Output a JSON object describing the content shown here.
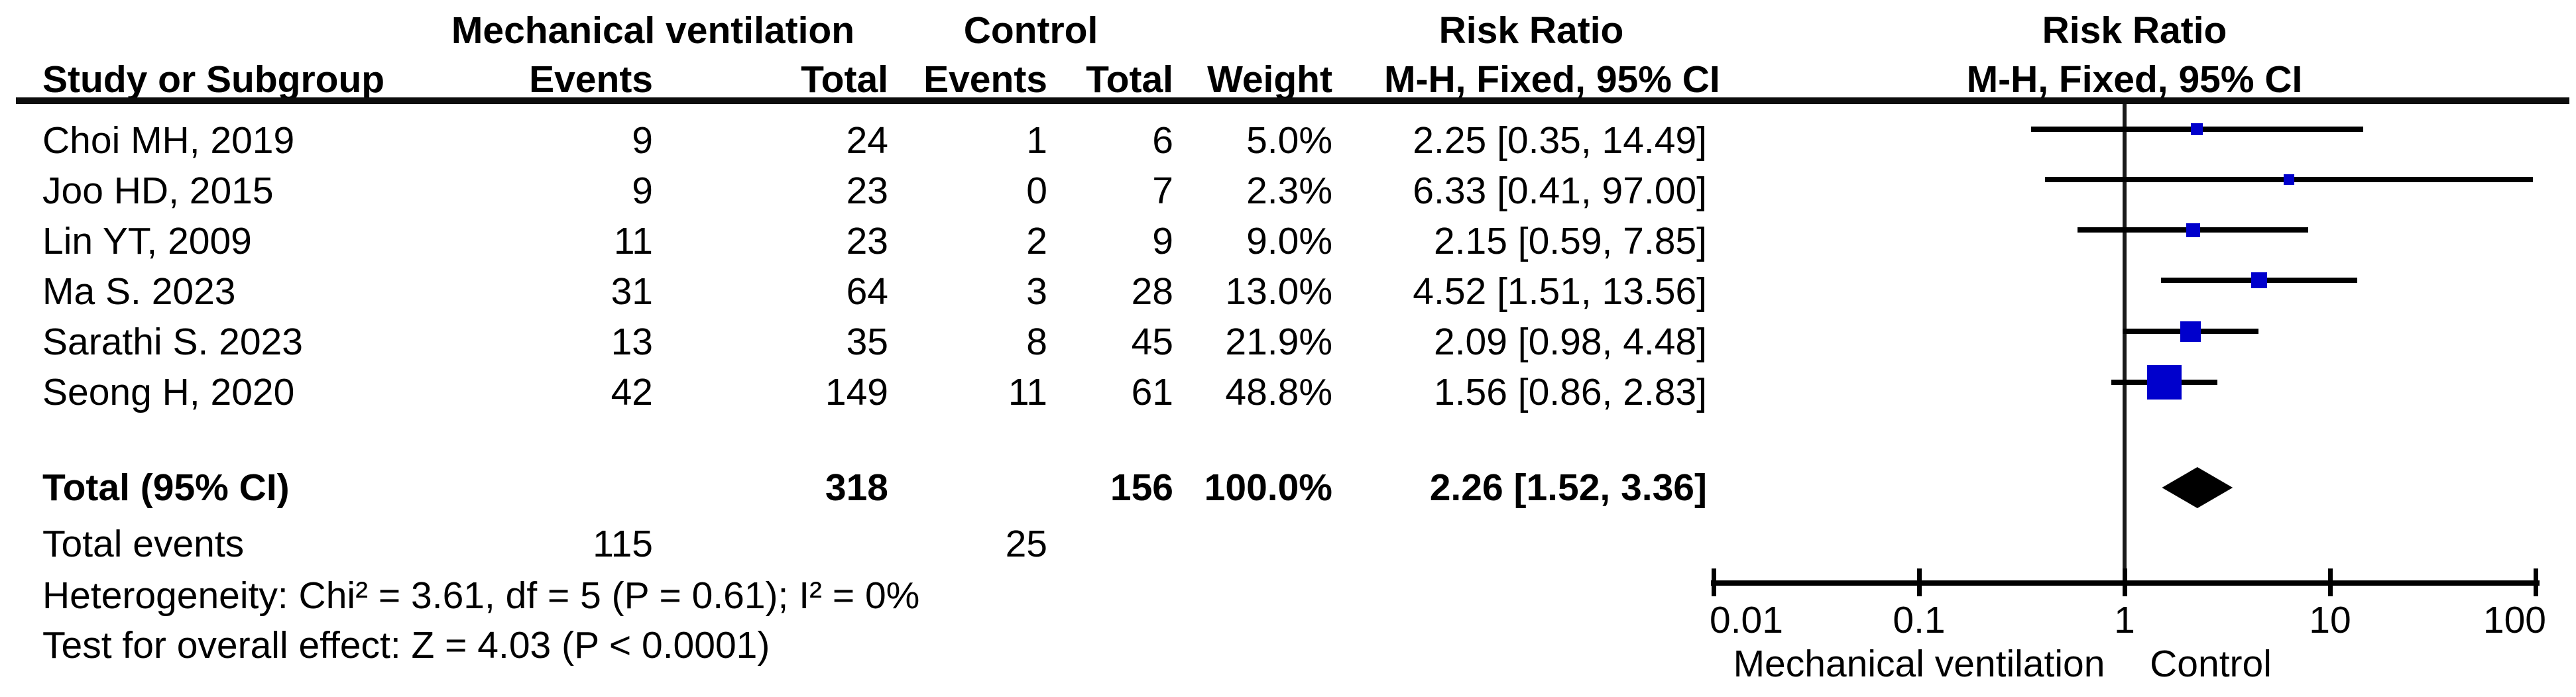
{
  "figure": {
    "headers": {
      "group_experimental": "Mechanical ventilation",
      "group_control": "Control",
      "study": "Study or Subgroup",
      "events": "Events",
      "total": "Total",
      "weight": "Weight",
      "risk_ratio_col_line1": "Risk Ratio",
      "risk_ratio_col_line2": "M-H, Fixed, 95% CI",
      "risk_ratio_plot_line1": "Risk Ratio",
      "risk_ratio_plot_line2": "M-H, Fixed, 95% CI"
    },
    "rows": [
      {
        "study": "Choi MH, 2019",
        "events_mv": "9",
        "total_mv": "24",
        "events_control": "1",
        "total_control": "6",
        "weight": "5.0%",
        "ci_text": "2.25 [0.35, 14.49]"
      },
      {
        "study": "Joo HD, 2015",
        "events_mv": "9",
        "total_mv": "23",
        "events_control": "0",
        "total_control": "7",
        "weight": "2.3%",
        "ci_text": "6.33 [0.41, 97.00]"
      },
      {
        "study": "Lin YT, 2009",
        "events_mv": "11",
        "total_mv": "23",
        "events_control": "2",
        "total_control": "9",
        "weight": "9.0%",
        "ci_text": "2.15 [0.59, 7.85]"
      },
      {
        "study": "Ma S. 2023",
        "events_mv": "31",
        "total_mv": "64",
        "events_control": "3",
        "total_control": "28",
        "weight": "13.0%",
        "ci_text": "4.52 [1.51, 13.56]"
      },
      {
        "study": "Sarathi S. 2023",
        "events_mv": "13",
        "total_mv": "35",
        "events_control": "8",
        "total_control": "45",
        "weight": "21.9%",
        "ci_text": "2.09 [0.98, 4.48]"
      },
      {
        "study": "Seong H, 2020",
        "events_mv": "42",
        "total_mv": "149",
        "events_control": "11",
        "total_control": "61",
        "weight": "48.8%",
        "ci_text": "1.56 [0.86, 2.83]"
      }
    ],
    "total_row": {
      "label": "Total (95% CI)",
      "total_mv": "318",
      "total_control": "156",
      "weight": "100.0%",
      "ci_text": "2.26 [1.52, 3.36]"
    },
    "total_events_row": {
      "label": "Total events",
      "mv": "115",
      "control": "25"
    },
    "footnotes": {
      "heterogeneity": "Heterogeneity: Chi² = 3.61, df = 5 (P = 0.61); I² = 0%",
      "overall_effect": "Test for overall effect: Z = 4.03 (P < 0.0001)"
    }
  },
  "chart_data": {
    "type": "forest",
    "x_scale": "log10",
    "x_range": [
      0.01,
      100
    ],
    "x_tick_values": [
      0.01,
      0.1,
      1,
      10,
      100
    ],
    "x_ticks": [
      "0.01",
      "0.1",
      "1",
      "10",
      "100"
    ],
    "null_line": 1,
    "effect_measure": "Risk Ratio (M-H, Fixed, 95% CI)",
    "studies": [
      {
        "name": "Choi MH, 2019",
        "rr": 2.25,
        "ci_low": 0.35,
        "ci_high": 14.49,
        "weight_pct": 5.0
      },
      {
        "name": "Joo HD, 2015",
        "rr": 6.33,
        "ci_low": 0.41,
        "ci_high": 97.0,
        "weight_pct": 2.3
      },
      {
        "name": "Lin YT, 2009",
        "rr": 2.15,
        "ci_low": 0.59,
        "ci_high": 7.85,
        "weight_pct": 9.0
      },
      {
        "name": "Ma S. 2023",
        "rr": 4.52,
        "ci_low": 1.51,
        "ci_high": 13.56,
        "weight_pct": 13.0
      },
      {
        "name": "Sarathi S. 2023",
        "rr": 2.09,
        "ci_low": 0.98,
        "ci_high": 4.48,
        "weight_pct": 21.9
      },
      {
        "name": "Seong H, 2020",
        "rr": 1.56,
        "ci_low": 0.86,
        "ci_high": 2.83,
        "weight_pct": 48.8
      }
    ],
    "total": {
      "label": "Total (95% CI)",
      "rr": 2.26,
      "ci_low": 1.52,
      "ci_high": 3.36
    },
    "favours_left_label": "Mechanical ventilation",
    "favours_right_label": "Control",
    "marker_color": "#0000CC",
    "diamond_color": "#000000",
    "line_color": "#000000"
  }
}
